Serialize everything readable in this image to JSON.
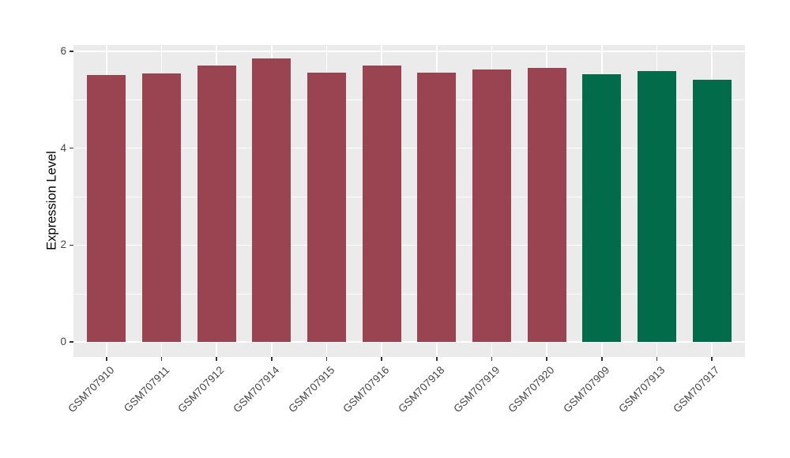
{
  "chart_data": {
    "type": "bar",
    "title": "",
    "xlabel": "",
    "ylabel": "Expression Level",
    "categories": [
      "GSM707910",
      "GSM707911",
      "GSM707912",
      "GSM707914",
      "GSM707915",
      "GSM707916",
      "GSM707918",
      "GSM707919",
      "GSM707920",
      "GSM707909",
      "GSM707913",
      "GSM707917"
    ],
    "values": [
      5.51,
      5.55,
      5.7,
      5.85,
      5.56,
      5.71,
      5.56,
      5.62,
      5.66,
      5.52,
      5.6,
      5.42
    ],
    "groups": [
      "group1",
      "group1",
      "group1",
      "group1",
      "group1",
      "group1",
      "group1",
      "group1",
      "group1",
      "group2",
      "group2",
      "group2"
    ],
    "group_colors": {
      "group1": "#9A4452",
      "group2": "#016B4A"
    },
    "ylim": [
      0,
      6.13
    ],
    "yticks": [
      0,
      2,
      4,
      6
    ],
    "ytick_labels": [
      "0",
      "2",
      "4",
      "6"
    ],
    "yminor": [
      1,
      3,
      5
    ],
    "bar_width_fraction": 0.7,
    "grid": "on",
    "legend": "none",
    "x_label_angle_deg": 45,
    "colors": {
      "panel_background": "#EBEBEB",
      "gridline": "#FFFFFF",
      "tick_mark": "#333333",
      "tick_label": "#454545",
      "axis_title": "#000000",
      "figure_background": "#FFFFFF"
    }
  }
}
